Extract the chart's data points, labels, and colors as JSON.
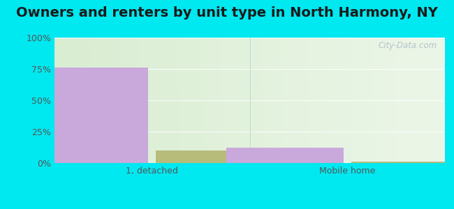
{
  "title": "Owners and renters by unit type in North Harmony, NY",
  "categories": [
    "1, detached",
    "Mobile home"
  ],
  "owner_values": [
    76,
    12
  ],
  "renter_values": [
    10,
    1
  ],
  "owner_color": "#c9a8dc",
  "renter_color": "#b8bc7a",
  "bar_width": 0.3,
  "ylim": [
    0,
    100
  ],
  "yticks": [
    0,
    25,
    50,
    75,
    100
  ],
  "ytick_labels": [
    "0%",
    "25%",
    "50%",
    "75%",
    "100%"
  ],
  "title_fontsize": 14,
  "tick_fontsize": 9,
  "legend_fontsize": 10,
  "bg_outer": "#00e8f0",
  "watermark": "City-Data.com"
}
